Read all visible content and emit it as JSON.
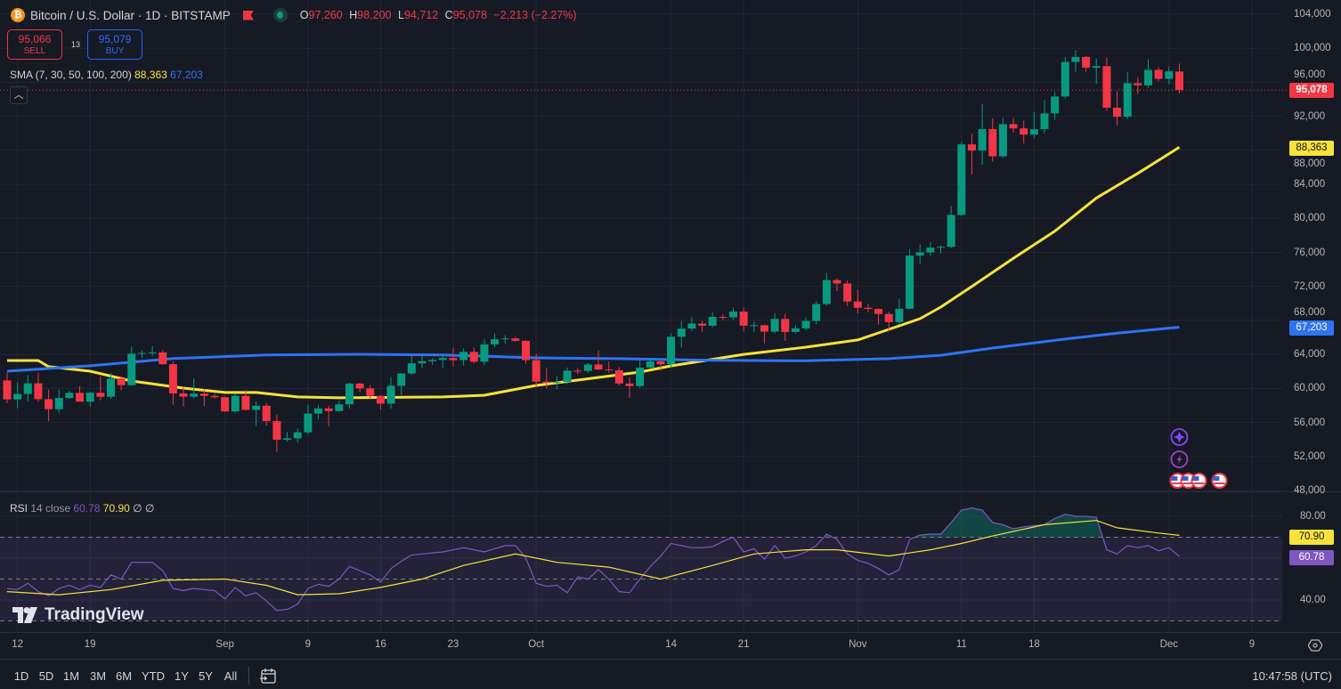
{
  "header": {
    "title": "Bitcoin / U.S. Dollar · 1D · BITSTAMP",
    "coin_icon": "bitcoin-icon",
    "ohlc": {
      "o_label": "O",
      "o": "97,260",
      "h_label": "H",
      "h": "98,200",
      "l_label": "L",
      "l": "94,712",
      "c_label": "C",
      "c": "95,078",
      "change": "−2,213 (−2.27%)"
    }
  },
  "trade": {
    "sell_price": "95,066",
    "sell_label": "SELL",
    "spread": "13",
    "buy_price": "95,079",
    "buy_label": "BUY"
  },
  "indicators": {
    "sma_label": "SMA (7, 30, 50, 100, 200)",
    "sma_val1": "88,363",
    "sma_val2": "67,203",
    "rsi_label": "RSI",
    "rsi_params": "14 close",
    "rsi_val": "60.78",
    "rsi_ma_val": "70.90",
    "rsi_extra1": "∅",
    "rsi_extra2": "∅"
  },
  "price_labels": {
    "last": "95,078",
    "sma_yellow": "88,363",
    "sma_blue": "67,203",
    "rsi": "60.78",
    "rsi_ma": "70.90"
  },
  "colors": {
    "up": "#089981",
    "down": "#f23645",
    "sma_yellow": "#f7e23b",
    "sma_blue": "#2f73f2",
    "rsi": "#7e57c2",
    "rsi_ma": "#f7e23b",
    "bg": "#161a25"
  },
  "logo": "TradingView",
  "bottom": {
    "ranges": [
      "1D",
      "5D",
      "1M",
      "3M",
      "6M",
      "YTD",
      "1Y",
      "5Y",
      "All"
    ],
    "clock": "10:47:58 (UTC)"
  },
  "chart_data": {
    "type": "candlestick",
    "symbol": "Bitcoin / U.S. Dollar",
    "interval": "1D",
    "exchange": "BITSTAMP",
    "ylim": [
      48000,
      104000
    ],
    "y_ticks": [
      "104,000",
      "100,000",
      "96,000",
      "92,000",
      "88,000",
      "84,000",
      "80,000",
      "76,000",
      "72,000",
      "68,000",
      "64,000",
      "60,000",
      "56,000",
      "52,000",
      "48,000"
    ],
    "x_ticks": [
      {
        "label": "12",
        "date": "Aug 12"
      },
      {
        "label": "19",
        "date": "Aug 19"
      },
      {
        "label": "Sep",
        "date": "Sep 1"
      },
      {
        "label": "9",
        "date": "Sep 9"
      },
      {
        "label": "16",
        "date": "Sep 16"
      },
      {
        "label": "23",
        "date": "Sep 23"
      },
      {
        "label": "Oct",
        "date": "Oct 1"
      },
      {
        "label": "14",
        "date": "Oct 14"
      },
      {
        "label": "21",
        "date": "Oct 21"
      },
      {
        "label": "Nov",
        "date": "Nov 1"
      },
      {
        "label": "11",
        "date": "Nov 11"
      },
      {
        "label": "18",
        "date": "Nov 18"
      },
      {
        "label": "Dec",
        "date": "Dec 1"
      },
      {
        "label": "9",
        "date": "Dec 9"
      }
    ],
    "candles_fields": [
      "date",
      "open",
      "high",
      "low",
      "close"
    ],
    "candles": [
      [
        "Aug 11",
        60940,
        61830,
        58290,
        58710
      ],
      [
        "Aug 12",
        58710,
        60700,
        57650,
        59350
      ],
      [
        "Aug 13",
        59350,
        61570,
        58470,
        60600
      ],
      [
        "Aug 14",
        60600,
        61800,
        58440,
        58740
      ],
      [
        "Aug 15",
        58740,
        59850,
        56140,
        57560
      ],
      [
        "Aug 16",
        57560,
        59850,
        57100,
        58880
      ],
      [
        "Aug 17",
        58880,
        59700,
        58780,
        59480
      ],
      [
        "Aug 18",
        59480,
        60270,
        58430,
        58450
      ],
      [
        "Aug 19",
        58450,
        59600,
        57850,
        59490
      ],
      [
        "Aug 20",
        59490,
        61400,
        58600,
        59020
      ],
      [
        "Aug 21",
        59020,
        61800,
        58800,
        61170
      ],
      [
        "Aug 22",
        61170,
        61420,
        59770,
        60380
      ],
      [
        "Aug 23",
        60380,
        64950,
        60350,
        64090
      ],
      [
        "Aug 24",
        64090,
        64500,
        63600,
        64170
      ],
      [
        "Aug 25",
        64170,
        65000,
        63800,
        64240
      ],
      [
        "Aug 26",
        64240,
        64500,
        62800,
        62850
      ],
      [
        "Aug 27",
        62850,
        63200,
        58080,
        59420
      ],
      [
        "Aug 28",
        59420,
        60230,
        57870,
        59030
      ],
      [
        "Aug 29",
        59030,
        61180,
        58800,
        59380
      ],
      [
        "Aug 30",
        59380,
        59900,
        57900,
        59120
      ],
      [
        "Aug 31",
        59120,
        59430,
        58780,
        58970
      ],
      [
        "Sep 1",
        58970,
        59050,
        57230,
        57300
      ],
      [
        "Sep 2",
        57300,
        59400,
        57150,
        59130
      ],
      [
        "Sep 3",
        59130,
        59800,
        57420,
        57480
      ],
      [
        "Sep 4",
        57480,
        58500,
        55600,
        57970
      ],
      [
        "Sep 5",
        57970,
        58300,
        55620,
        56160
      ],
      [
        "Sep 6",
        56160,
        56950,
        52550,
        53960
      ],
      [
        "Sep 7",
        53960,
        54850,
        53750,
        54140
      ],
      [
        "Sep 8",
        54140,
        55300,
        53650,
        54840
      ],
      [
        "Sep 9",
        54840,
        58100,
        54590,
        57040
      ],
      [
        "Sep 10",
        57040,
        58040,
        56400,
        57650
      ],
      [
        "Sep 11",
        57650,
        57980,
        55550,
        57340
      ],
      [
        "Sep 12",
        57340,
        58600,
        57320,
        58130
      ],
      [
        "Sep 13",
        58130,
        60660,
        57630,
        60570
      ],
      [
        "Sep 14",
        60570,
        60650,
        59560,
        60010
      ],
      [
        "Sep 15",
        60010,
        60400,
        58700,
        59130
      ],
      [
        "Sep 16",
        59130,
        59200,
        57500,
        58210
      ],
      [
        "Sep 17",
        58210,
        61350,
        57640,
        60310
      ],
      [
        "Sep 18",
        60310,
        61780,
        59200,
        61760
      ],
      [
        "Sep 19",
        61760,
        63850,
        61570,
        62950
      ],
      [
        "Sep 20",
        62950,
        64100,
        62400,
        63200
      ],
      [
        "Sep 21",
        63200,
        63570,
        62760,
        63350
      ],
      [
        "Sep 22",
        63350,
        64000,
        62400,
        63580
      ],
      [
        "Sep 23",
        63580,
        64770,
        62580,
        63330
      ],
      [
        "Sep 24",
        63330,
        64700,
        62700,
        64300
      ],
      [
        "Sep 25",
        64300,
        64800,
        62950,
        63140
      ],
      [
        "Sep 26",
        63140,
        65820,
        62750,
        65180
      ],
      [
        "Sep 27",
        65180,
        66480,
        64850,
        65790
      ],
      [
        "Sep 28",
        65790,
        66270,
        65250,
        65880
      ],
      [
        "Sep 29",
        65880,
        66070,
        65480,
        65600
      ],
      [
        "Sep 30",
        65600,
        65650,
        62950,
        63330
      ],
      [
        "Oct 1",
        63330,
        64100,
        60200,
        60800
      ],
      [
        "Oct 2",
        60800,
        62400,
        59980,
        60650
      ],
      [
        "Oct 3",
        60650,
        61450,
        59880,
        60750
      ],
      [
        "Oct 4",
        60750,
        62460,
        60480,
        62090
      ],
      [
        "Oct 5",
        62090,
        62370,
        61680,
        62060
      ],
      [
        "Oct 6",
        62060,
        62970,
        61820,
        62820
      ],
      [
        "Oct 7",
        62820,
        64470,
        62170,
        62220
      ],
      [
        "Oct 8",
        62220,
        63170,
        61850,
        62130
      ],
      [
        "Oct 9",
        62130,
        62500,
        60370,
        60580
      ],
      [
        "Oct 10",
        60580,
        61300,
        58900,
        60280
      ],
      [
        "Oct 11",
        60280,
        63400,
        60080,
        62450
      ],
      [
        "Oct 12",
        62450,
        63450,
        62430,
        63190
      ],
      [
        "Oct 13",
        63190,
        63300,
        62100,
        62850
      ],
      [
        "Oct 14",
        62850,
        66500,
        62440,
        66080
      ],
      [
        "Oct 15",
        66080,
        67900,
        64830,
        67040
      ],
      [
        "Oct 16",
        67040,
        68400,
        66720,
        67620
      ],
      [
        "Oct 17",
        67620,
        67920,
        66670,
        67380
      ],
      [
        "Oct 18",
        67380,
        68980,
        67200,
        68410
      ],
      [
        "Oct 19",
        68410,
        68700,
        68000,
        68360
      ],
      [
        "Oct 20",
        68360,
        69450,
        68100,
        69030
      ],
      [
        "Oct 21",
        69030,
        69500,
        66700,
        67380
      ],
      [
        "Oct 22",
        67380,
        67850,
        66600,
        67430
      ],
      [
        "Oct 23",
        67430,
        67480,
        65300,
        66680
      ],
      [
        "Oct 24",
        66680,
        68850,
        66500,
        68180
      ],
      [
        "Oct 25",
        68180,
        68780,
        65600,
        66640
      ],
      [
        "Oct 26",
        66640,
        67400,
        66450,
        67060
      ],
      [
        "Oct 27",
        67060,
        68350,
        66800,
        67930
      ],
      [
        "Oct 28",
        67930,
        70250,
        67560,
        69930
      ],
      [
        "Oct 29",
        69930,
        73600,
        69730,
        72740
      ],
      [
        "Oct 30",
        72740,
        72950,
        71450,
        72340
      ],
      [
        "Oct 31",
        72340,
        72700,
        69700,
        70220
      ],
      [
        "Nov 1",
        70220,
        71600,
        68830,
        69480
      ],
      [
        "Nov 2",
        69480,
        69940,
        68980,
        69350
      ],
      [
        "Nov 3",
        69350,
        69420,
        67500,
        68750
      ],
      [
        "Nov 4",
        68750,
        69000,
        66800,
        67800
      ],
      [
        "Nov 5",
        67800,
        70550,
        67500,
        69370
      ],
      [
        "Nov 6",
        69370,
        76400,
        69300,
        75620
      ],
      [
        "Nov 7",
        75620,
        76950,
        74700,
        76000
      ],
      [
        "Nov 8",
        76000,
        77250,
        75580,
        76560
      ],
      [
        "Nov 9",
        76560,
        76800,
        75850,
        76660
      ],
      [
        "Nov 10",
        76660,
        81450,
        76500,
        80400
      ],
      [
        "Nov 11",
        80400,
        89000,
        80250,
        88700
      ],
      [
        "Nov 12",
        88700,
        89950,
        85150,
        87970
      ],
      [
        "Nov 13",
        87970,
        93450,
        86300,
        90490
      ],
      [
        "Nov 14",
        90490,
        91750,
        86670,
        87300
      ],
      [
        "Nov 15",
        87300,
        91800,
        87100,
        91080
      ],
      [
        "Nov 16",
        91080,
        91780,
        90080,
        90580
      ],
      [
        "Nov 17",
        90580,
        91480,
        88800,
        89850
      ],
      [
        "Nov 18",
        89850,
        92550,
        89420,
        90480
      ],
      [
        "Nov 19",
        90480,
        93900,
        89970,
        92340
      ],
      [
        "Nov 20",
        92340,
        94850,
        91600,
        94330
      ],
      [
        "Nov 21",
        94330,
        99000,
        94100,
        98390
      ],
      [
        "Nov 22",
        98390,
        99800,
        97250,
        98990
      ],
      [
        "Nov 23",
        98990,
        99100,
        97220,
        97710
      ],
      [
        "Nov 24",
        97710,
        98800,
        95800,
        97900
      ],
      [
        "Nov 25",
        97900,
        98900,
        92650,
        93010
      ],
      [
        "Nov 26",
        93010,
        94950,
        90900,
        91950
      ],
      [
        "Nov 27",
        91950,
        97200,
        91700,
        95890
      ],
      [
        "Nov 28",
        95890,
        96600,
        94650,
        95640
      ],
      [
        "Nov 29",
        95640,
        98700,
        95370,
        97460
      ],
      [
        "Nov 30",
        97460,
        97800,
        96150,
        96410
      ],
      [
        "Dec 1",
        96410,
        97850,
        95750,
        97290
      ],
      [
        "Dec 2",
        97260,
        98200,
        94712,
        95078
      ]
    ],
    "sma_series": [
      {
        "label": "88,363",
        "color": "#f7e23b",
        "points": [
          [
            "Aug 11",
            63280
          ],
          [
            "Aug 14",
            63280
          ],
          [
            "Aug 15",
            62560
          ],
          [
            "Aug 19",
            62030
          ],
          [
            "Aug 23",
            60870
          ],
          [
            "Aug 28",
            60040
          ],
          [
            "Sep 1",
            59520
          ],
          [
            "Sep 4",
            59520
          ],
          [
            "Sep 8",
            59000
          ],
          [
            "Sep 12",
            58900
          ],
          [
            "Sep 22",
            59000
          ],
          [
            "Sep 26",
            59200
          ],
          [
            "Oct 1",
            60350
          ],
          [
            "Oct 11",
            61920
          ],
          [
            "Oct 14",
            62650
          ],
          [
            "Oct 21",
            64000
          ],
          [
            "Oct 27",
            64850
          ],
          [
            "Nov 1",
            65700
          ],
          [
            "Nov 4",
            66950
          ],
          [
            "Nov 7",
            68200
          ],
          [
            "Nov 9",
            69560
          ],
          [
            "Nov 12",
            72000
          ],
          [
            "Nov 16",
            75300
          ],
          [
            "Nov 20",
            78500
          ],
          [
            "Nov 24",
            82400
          ],
          [
            "Nov 28",
            85300
          ],
          [
            "Dec 2",
            88363
          ]
        ]
      },
      {
        "label": "67,203",
        "color": "#2f73f2",
        "points": [
          [
            "Aug 11",
            62030
          ],
          [
            "Aug 19",
            62660
          ],
          [
            "Aug 27",
            63510
          ],
          [
            "Sep 5",
            63930
          ],
          [
            "Sep 14",
            64020
          ],
          [
            "Sep 22",
            63930
          ],
          [
            "Oct 1",
            63600
          ],
          [
            "Oct 9",
            63500
          ],
          [
            "Oct 18",
            63300
          ],
          [
            "Oct 27",
            63250
          ],
          [
            "Nov 4",
            63500
          ],
          [
            "Nov 9",
            63900
          ],
          [
            "Nov 14",
            64750
          ],
          [
            "Nov 21",
            65800
          ],
          [
            "Nov 26",
            66500
          ],
          [
            "Dec 2",
            67203
          ]
        ]
      }
    ],
    "rsi": {
      "ylim": [
        20,
        90
      ],
      "y_ticks": [
        "80.00",
        "40.00"
      ],
      "levels": [
        70,
        50,
        30
      ],
      "values": [
        45.5,
        45,
        48,
        44,
        42,
        45.5,
        47,
        45,
        47,
        46,
        52,
        50,
        58,
        58,
        58,
        54,
        45.5,
        44.5,
        45.5,
        45,
        44.5,
        40.5,
        46,
        42,
        43.5,
        39.5,
        35,
        35.5,
        38,
        45.5,
        47.5,
        46.5,
        50,
        56,
        54,
        52,
        48.5,
        55,
        58.5,
        61.5,
        62,
        62.5,
        63,
        64,
        65,
        64,
        63,
        64.5,
        66,
        66,
        60,
        48,
        46.5,
        47,
        43.5,
        51,
        50,
        54.5,
        50,
        44,
        43.5,
        50,
        56,
        61,
        67,
        66,
        65,
        65,
        65.5,
        68,
        70,
        63,
        64.5,
        59.5,
        66,
        60,
        61,
        63,
        66,
        71.5,
        69,
        62,
        59,
        57.5,
        55,
        52,
        54.5,
        69,
        71,
        71.5,
        71.5,
        77,
        83,
        84,
        83,
        77,
        76,
        74,
        75,
        75.5,
        76,
        79,
        81,
        80,
        80,
        79.5,
        64,
        62,
        66,
        65,
        66,
        63.5,
        65,
        60.78
      ],
      "ma_points": [
        [
          "Aug 11",
          44
        ],
        [
          "Aug 16",
          42.5
        ],
        [
          "Aug 21",
          45
        ],
        [
          "Aug 26",
          49.4
        ],
        [
          "Sep 1",
          50
        ],
        [
          "Sep 5",
          47
        ],
        [
          "Sep 8",
          42.5
        ],
        [
          "Sep 12",
          43
        ],
        [
          "Sep 16",
          46
        ],
        [
          "Sep 20",
          50
        ],
        [
          "Sep 24",
          56.5
        ],
        [
          "Sep 29",
          62
        ],
        [
          "Oct 3",
          58
        ],
        [
          "Oct 8",
          55.7
        ],
        [
          "Oct 13",
          50
        ],
        [
          "Oct 18",
          56.5
        ],
        [
          "Oct 22",
          62
        ],
        [
          "Oct 27",
          64
        ],
        [
          "Oct 30",
          64
        ],
        [
          "Nov 4",
          61
        ],
        [
          "Nov 8",
          64
        ],
        [
          "Nov 11",
          67
        ],
        [
          "Nov 14",
          70.6
        ],
        [
          "Nov 19",
          76
        ],
        [
          "Nov 24",
          78
        ],
        [
          "Nov 26",
          74.5
        ],
        [
          "Nov 30",
          72
        ],
        [
          "Dec 2",
          70.9
        ]
      ]
    }
  }
}
